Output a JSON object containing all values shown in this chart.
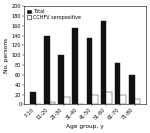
{
  "age_groups": [
    "7-10",
    "11-20",
    "21-30",
    "31-40",
    "41-50",
    "51-60",
    "61-70",
    "71-80"
  ],
  "total": [
    25,
    140,
    100,
    155,
    135,
    170,
    85,
    60
  ],
  "seropositive": [
    0,
    5,
    15,
    0,
    20,
    25,
    20,
    10
  ],
  "bar_width": 0.4,
  "ylabel": "No. persons",
  "xlabel": "Age group, y",
  "ylim": [
    0,
    200
  ],
  "yticks": [
    0,
    20,
    40,
    60,
    80,
    100,
    120,
    140,
    160,
    180,
    200
  ],
  "legend_total": "Total",
  "legend_sero": "CCHFV seropositive",
  "color_total": "#111111",
  "color_sero": "#ffffff",
  "edge_color": "#111111",
  "label_fontsize": 4.2,
  "tick_fontsize": 3.5,
  "legend_fontsize": 3.5
}
